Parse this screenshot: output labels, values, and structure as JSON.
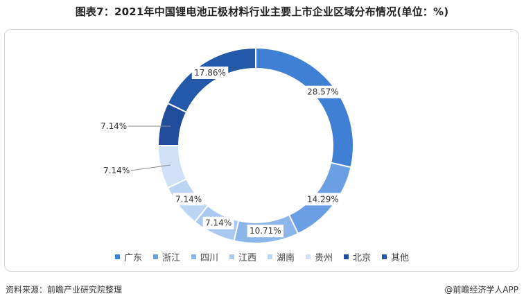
{
  "header": {
    "title": "图表7：2021年中国锂电池正极材料行业主要上市企业区域分布情况(单位：%)"
  },
  "footer": {
    "source": "资料来源：前瞻产业研究院整理",
    "brand": "@前瞻经济学人APP"
  },
  "colors": {
    "广东": "#3f7fd4",
    "浙江": "#6a9fe3",
    "四川": "#8cb6ea",
    "江西": "#a9c9f0",
    "湖南": "#bcd5f4",
    "贵州": "#cfe1f7",
    "北京": "#1f4d9c",
    "其他": "#2458a8"
  },
  "chart_data": {
    "type": "pie",
    "donut": true,
    "title": "图表7：2021年中国锂电池正极材料行业主要上市企业区域分布情况(单位：%)",
    "categories": [
      "广东",
      "浙江",
      "四川",
      "江西",
      "湖南",
      "贵州",
      "北京",
      "其他"
    ],
    "values": [
      28.57,
      14.29,
      10.71,
      7.14,
      7.14,
      7.14,
      7.14,
      17.86
    ],
    "labels": [
      "28.57%",
      "14.29%",
      "10.71%",
      "7.14%",
      "7.14%",
      "7.14%",
      "7.14%",
      "17.86%"
    ],
    "legend_position": "bottom",
    "start_angle": "top-center, clockwise"
  }
}
